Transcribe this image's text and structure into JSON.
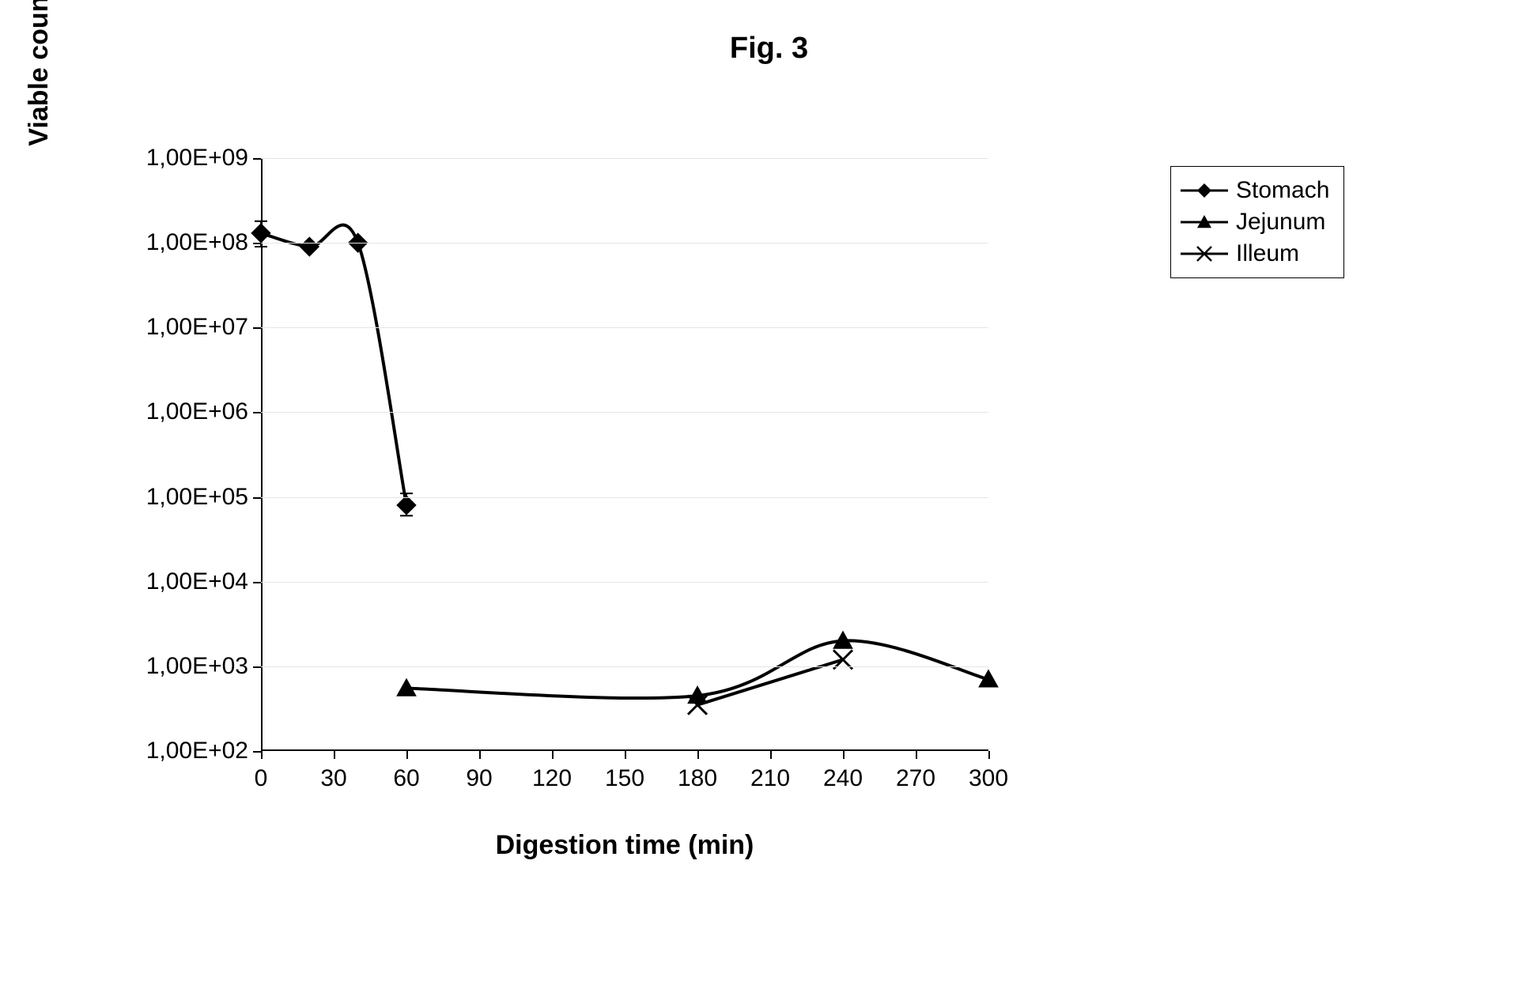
{
  "figure_title": "Fig. 3",
  "chart": {
    "type": "line",
    "x_axis": {
      "title": "Digestion time (min)",
      "min": 0,
      "max": 300,
      "tick_step": 30,
      "ticks": [
        0,
        30,
        60,
        90,
        120,
        150,
        180,
        210,
        240,
        270,
        300
      ],
      "tick_labels": [
        "0",
        "30",
        "60",
        "90",
        "120",
        "150",
        "180",
        "210",
        "240",
        "270",
        "300"
      ],
      "title_fontsize": 34,
      "label_fontsize": 30
    },
    "y_axis": {
      "title": "Viable count (cfu)/ml maple sap",
      "scale": "log",
      "min_exp": 2,
      "max_exp": 9,
      "ticks_exp": [
        2,
        3,
        4,
        5,
        6,
        7,
        8,
        9
      ],
      "tick_labels": [
        "1,00E+02",
        "1,00E+03",
        "1,00E+04",
        "1,00E+05",
        "1,00E+06",
        "1,00E+07",
        "1,00E+08",
        "1,00E+09"
      ],
      "title_fontsize": 34,
      "label_fontsize": 30
    },
    "gridline_color": "#e5e5e5",
    "axis_color": "#000000",
    "background_color": "#ffffff",
    "line_width": 4,
    "marker_size": 12,
    "series": [
      {
        "name": "Stomach",
        "marker": "diamond",
        "color": "#000000",
        "smooth": true,
        "data": [
          {
            "x": 0,
            "y": 130000000.0,
            "err_low": 90000000.0,
            "err_high": 180000000.0
          },
          {
            "x": 20,
            "y": 90000000.0
          },
          {
            "x": 40,
            "y": 100000000.0
          },
          {
            "x": 60,
            "y": 80000.0,
            "err_low": 60000.0,
            "err_high": 110000.0
          }
        ]
      },
      {
        "name": "Jejunum",
        "marker": "triangle",
        "color": "#000000",
        "smooth": true,
        "data": [
          {
            "x": 60,
            "y": 550.0
          },
          {
            "x": 180,
            "y": 450.0
          },
          {
            "x": 240,
            "y": 2000.0
          },
          {
            "x": 300,
            "y": 700.0
          }
        ]
      },
      {
        "name": "Illeum",
        "marker": "x",
        "color": "#000000",
        "smooth": true,
        "data": [
          {
            "x": 180,
            "y": 350.0
          },
          {
            "x": 240,
            "y": 1200.0
          }
        ]
      }
    ],
    "legend": {
      "position": "right-top",
      "border_color": "#000000",
      "fontsize": 30,
      "items": [
        "Stomach",
        "Jejunum",
        "Illeum"
      ]
    }
  }
}
